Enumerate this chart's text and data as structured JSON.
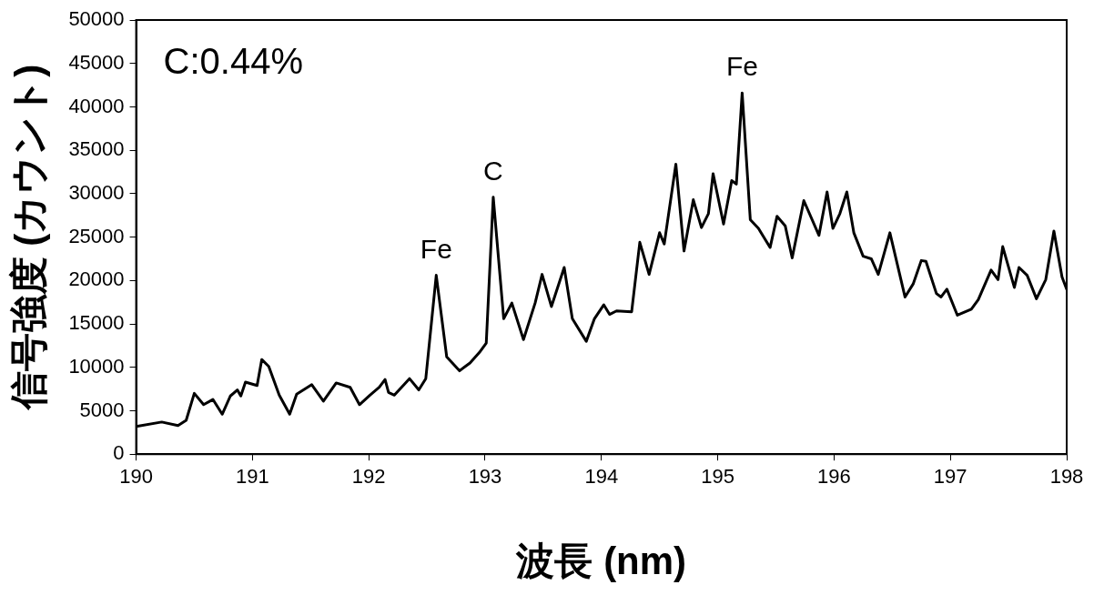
{
  "chart_data": {
    "type": "line",
    "xlabel": "波長 (nm)",
    "ylabel": "信号強度 (カウント)",
    "xlim": [
      190,
      198
    ],
    "xticks": [
      190,
      191,
      192,
      193,
      194,
      195,
      196,
      197,
      198
    ],
    "ylim": [
      0,
      50000
    ],
    "yticks": [
      0,
      5000,
      10000,
      15000,
      20000,
      25000,
      30000,
      35000,
      40000,
      45000,
      50000
    ],
    "grid": false,
    "legend": false,
    "marker": "none",
    "line_style": "solid",
    "annotations": [
      "C:0.44%",
      {
        "text": "Fe",
        "x": 192.58,
        "y": 20600
      },
      {
        "text": "C",
        "x": 193.07,
        "y": 29600
      },
      {
        "text": "Fe",
        "x": 195.21,
        "y": 41600
      }
    ],
    "series": [
      {
        "color": "#000000",
        "x": [
          190.0,
          190.22,
          190.36,
          190.43,
          190.5,
          190.58,
          190.66,
          190.74,
          190.81,
          190.87,
          190.9,
          190.94,
          191.04,
          191.08,
          191.14,
          191.23,
          191.32,
          191.38,
          191.51,
          191.61,
          191.72,
          191.84,
          191.92,
          192.01,
          192.09,
          192.14,
          192.17,
          192.22,
          192.35,
          192.43,
          192.49,
          192.58,
          192.67,
          192.78,
          192.87,
          192.95,
          193.01,
          193.07,
          193.16,
          193.23,
          193.33,
          193.43,
          193.49,
          193.57,
          193.68,
          193.75,
          193.87,
          193.94,
          194.02,
          194.07,
          194.13,
          194.26,
          194.33,
          194.41,
          194.5,
          194.54,
          194.64,
          194.71,
          194.79,
          194.86,
          194.92,
          194.96,
          195.05,
          195.12,
          195.16,
          195.21,
          195.28,
          195.35,
          195.45,
          195.51,
          195.58,
          195.64,
          195.74,
          195.87,
          195.94,
          195.99,
          196.05,
          196.11,
          196.17,
          196.25,
          196.32,
          196.38,
          196.48,
          196.61,
          196.68,
          196.75,
          196.79,
          196.88,
          196.92,
          196.97,
          197.06,
          197.18,
          197.24,
          197.35,
          197.41,
          197.45,
          197.55,
          197.59,
          197.66,
          197.74,
          197.82,
          197.89,
          197.96,
          198.0
        ],
        "values": [
          3200,
          3700,
          3300,
          3900,
          7000,
          5700,
          6300,
          4600,
          6700,
          7400,
          6700,
          8300,
          7900,
          10900,
          10100,
          6800,
          4600,
          6900,
          8000,
          6100,
          8200,
          7700,
          5700,
          6800,
          7700,
          8600,
          7100,
          6800,
          8700,
          7400,
          8700,
          20600,
          11200,
          9600,
          10500,
          11700,
          12800,
          29600,
          15600,
          17400,
          13200,
          17400,
          20700,
          17000,
          21500,
          15600,
          13000,
          15600,
          17200,
          16100,
          16500,
          16400,
          24400,
          20700,
          25500,
          24200,
          33400,
          23400,
          29300,
          26100,
          27700,
          32300,
          26500,
          31500,
          31100,
          41600,
          27000,
          26000,
          23800,
          27400,
          26300,
          22600,
          29200,
          25200,
          30200,
          26000,
          27700,
          30200,
          25500,
          22800,
          22500,
          20700,
          25500,
          18100,
          19600,
          22300,
          22200,
          18500,
          18100,
          19000,
          16000,
          16700,
          17800,
          21200,
          20100,
          23900,
          19200,
          21500,
          20600,
          17900,
          20100,
          25700,
          20400,
          19000
        ]
      }
    ]
  }
}
